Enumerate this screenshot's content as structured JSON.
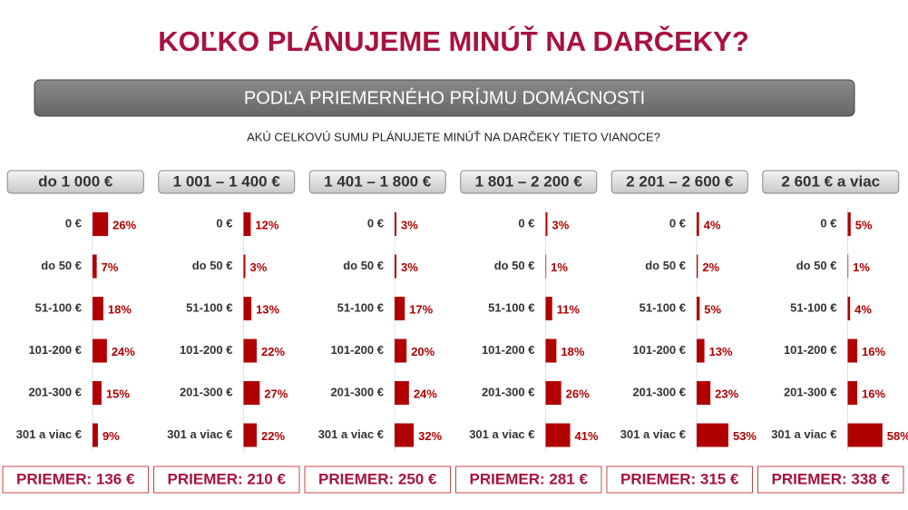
{
  "title": "KOĽKO PLÁNUJEME MINÚŤ NA DARČEKY?",
  "subtitle": "PODĽA PRIEMERNÉHO PRÍJMU DOMÁCNOSTI",
  "question": "AKÚ CELKOVÚ SUMU PLÁNUJETE MINÚŤ NA DARČEKY TIETO VIANOCE?",
  "chart_data": [
    {
      "type": "bar",
      "title": "do 1 000 €",
      "categories": [
        "0 €",
        "do 50 €",
        "51-100 €",
        "101-200 €",
        "201-300 €",
        "301 a viac €"
      ],
      "values": [
        26,
        7,
        18,
        24,
        15,
        9
      ],
      "value_labels": [
        "26%",
        "7%",
        "18%",
        "24%",
        "15%",
        "9%"
      ],
      "color": "#b00000",
      "footer": "PRIEMER: 136 €"
    },
    {
      "type": "bar",
      "title": "1 001 – 1 400 €",
      "categories": [
        "0 €",
        "do 50 €",
        "51-100 €",
        "101-200 €",
        "201-300 €",
        "301 a viac €"
      ],
      "values": [
        12,
        3,
        13,
        22,
        27,
        22
      ],
      "value_labels": [
        "12%",
        "3%",
        "13%",
        "22%",
        "27%",
        "22%"
      ],
      "color": "#b00000",
      "footer": "PRIEMER: 210 €"
    },
    {
      "type": "bar",
      "title": "1 401 – 1 800 €",
      "categories": [
        "0 €",
        "do 50 €",
        "51-100 €",
        "101-200 €",
        "201-300 €",
        "301 a viac €"
      ],
      "values": [
        3,
        3,
        17,
        20,
        24,
        32
      ],
      "value_labels": [
        "3%",
        "3%",
        "17%",
        "20%",
        "24%",
        "32%"
      ],
      "color": "#b00000",
      "footer": "PRIEMER: 250 €"
    },
    {
      "type": "bar",
      "title": "1 801 – 2 200 €",
      "categories": [
        "0 €",
        "do 50 €",
        "51-100 €",
        "101-200 €",
        "201-300 €",
        "301 a viac €"
      ],
      "values": [
        3,
        1,
        11,
        18,
        26,
        41
      ],
      "value_labels": [
        "3%",
        "1%",
        "11%",
        "18%",
        "26%",
        "41%"
      ],
      "color": "#b00000",
      "footer": "PRIEMER: 281 €"
    },
    {
      "type": "bar",
      "title": "2 201 – 2 600 €",
      "categories": [
        "0 €",
        "do 50 €",
        "51-100 €",
        "101-200 €",
        "201-300 €",
        "301 a viac €"
      ],
      "values": [
        4,
        2,
        5,
        13,
        23,
        53
      ],
      "value_labels": [
        "4%",
        "2%",
        "5%",
        "13%",
        "23%",
        "53%"
      ],
      "color": "#b00000",
      "footer": "PRIEMER: 315 €"
    },
    {
      "type": "bar",
      "title": "2 601 € a viac",
      "categories": [
        "0 €",
        "do 50 €",
        "51-100 €",
        "101-200 €",
        "201-300 €",
        "301 a viac €"
      ],
      "values": [
        5,
        1,
        4,
        16,
        16,
        58
      ],
      "value_labels": [
        "5%",
        "1%",
        "4%",
        "16%",
        "16%",
        "58%"
      ],
      "color": "#b00000",
      "footer": "PRIEMER: 338 €"
    }
  ]
}
